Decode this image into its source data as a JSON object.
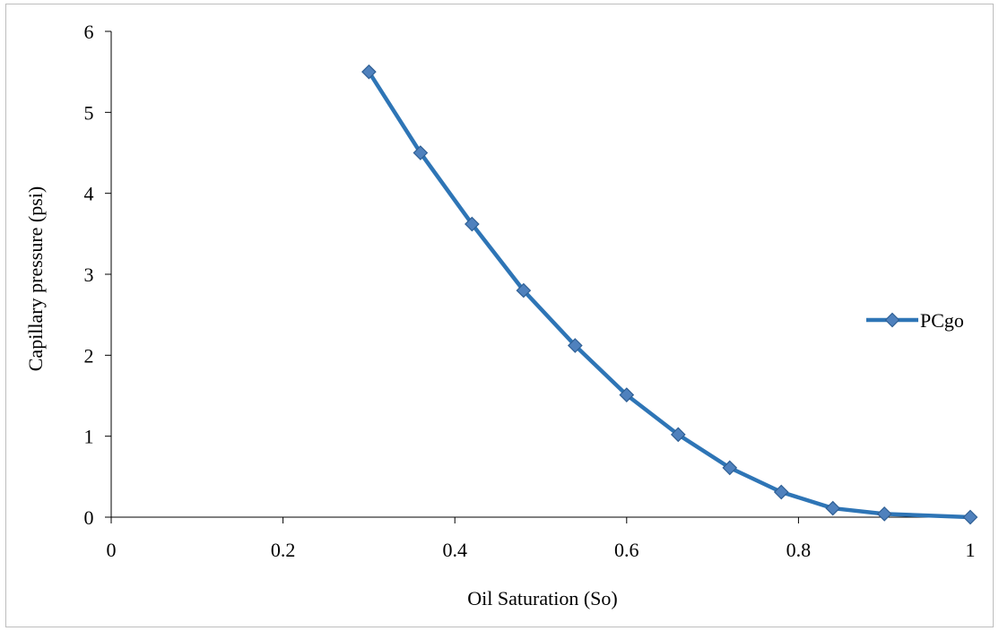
{
  "chart_data": {
    "type": "line",
    "title": "",
    "xlabel": "Oil Saturation  (So)",
    "ylabel": "Capillary  pressure  (psi)",
    "xlim": [
      0,
      1
    ],
    "ylim": [
      0,
      6
    ],
    "x_ticks": [
      "0",
      "0.2",
      "0.4",
      "0.6",
      "0.8",
      "1"
    ],
    "y_ticks": [
      "0",
      "1",
      "2",
      "3",
      "4",
      "5",
      "6"
    ],
    "grid": false,
    "legend_position": "right",
    "series": [
      {
        "name": "PCgo",
        "color": "#2E75B6",
        "marker": "diamond",
        "marker_color": "#4F81BD",
        "x": [
          0.3,
          0.36,
          0.42,
          0.48,
          0.54,
          0.6,
          0.66,
          0.72,
          0.78,
          0.84,
          0.9,
          1.0
        ],
        "y": [
          5.5,
          4.5,
          3.62,
          2.8,
          2.12,
          1.51,
          1.02,
          0.61,
          0.31,
          0.11,
          0.04,
          0.0
        ]
      }
    ]
  }
}
